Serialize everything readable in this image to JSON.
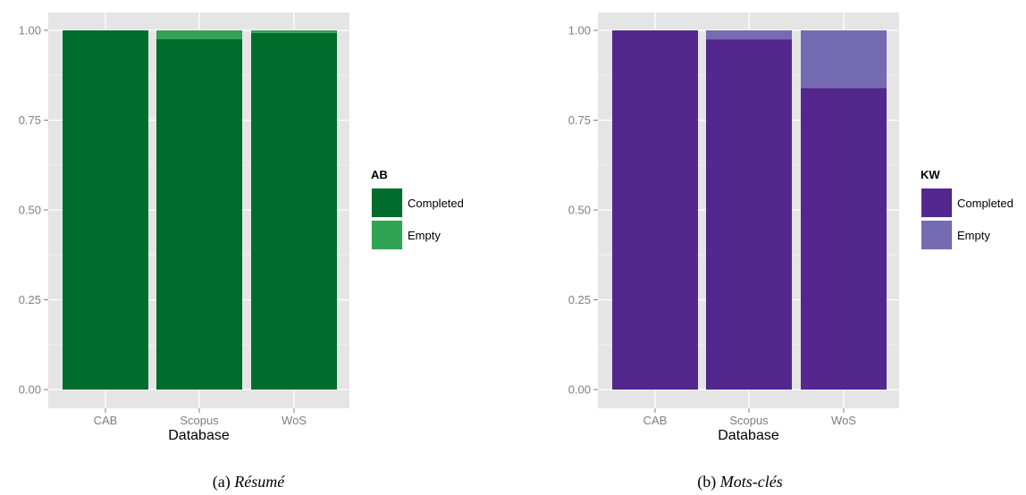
{
  "chart_data": [
    {
      "type": "bar",
      "stacked": true,
      "caption_label": "(a)",
      "caption_title": "Résumé",
      "xlabel": "Database",
      "ylabel": "",
      "categories": [
        "CAB",
        "Scopus",
        "WoS"
      ],
      "ylim": [
        0,
        1
      ],
      "yticks": [
        "0.00",
        "0.25",
        "0.50",
        "0.75",
        "1.00"
      ],
      "ytick_values": [
        0,
        0.25,
        0.5,
        0.75,
        1.0
      ],
      "grid": true,
      "legend": {
        "title": "AB",
        "position": "right"
      },
      "series": [
        {
          "name": "Completed",
          "color": "#006D2C",
          "values": [
            1.0,
            0.976,
            0.993
          ]
        },
        {
          "name": "Empty",
          "color": "#31A354",
          "values": [
            0.0,
            0.024,
            0.007
          ]
        }
      ]
    },
    {
      "type": "bar",
      "stacked": true,
      "caption_label": "(b)",
      "caption_title": "Mots-clés",
      "xlabel": "Database",
      "ylabel": "",
      "categories": [
        "CAB",
        "Scopus",
        "WoS"
      ],
      "ylim": [
        0,
        1
      ],
      "yticks": [
        "0.00",
        "0.25",
        "0.50",
        "0.75",
        "1.00"
      ],
      "ytick_values": [
        0,
        0.25,
        0.5,
        0.75,
        1.0
      ],
      "grid": true,
      "legend": {
        "title": "KW",
        "position": "right"
      },
      "series": [
        {
          "name": "Completed",
          "color": "#54278F",
          "values": [
            1.0,
            0.975,
            0.84
          ]
        },
        {
          "name": "Empty",
          "color": "#756BB1",
          "values": [
            0.0,
            0.025,
            0.16
          ]
        }
      ]
    }
  ],
  "colors": {
    "panel_background": "#E5E5E5",
    "grid_major": "#FFFFFF",
    "grid_minor": "#F2F2F2",
    "tick_text": "#7F7F7F"
  }
}
